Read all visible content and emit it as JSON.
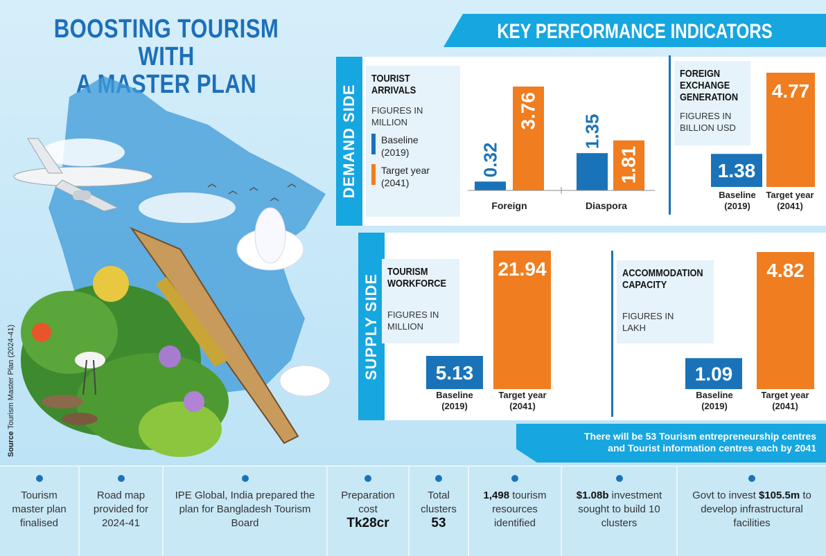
{
  "title_line1": "BOOSTING TOURISM WITH",
  "title_line2": "A MASTER PLAN",
  "kpi_title": "KEY PERFORMANCE INDICATORS",
  "source_label": "Source",
  "source_text": "Tourism Master Plan (2024-41)",
  "demand_label": "DEMAND SIDE",
  "supply_label": "SUPPLY SIDE",
  "colors": {
    "baseline": "#1a73b8",
    "target": "#f07d1f",
    "accent": "#16a6e0",
    "title": "#1d6fb8"
  },
  "legend": {
    "baseline": "Baseline\n(2019)",
    "target": "Target year\n(2041)"
  },
  "category_baseline": "Baseline",
  "category_baseline_year": "(2019)",
  "category_target": "Target year",
  "category_target_year": "(2041)",
  "footnote_line1": "There will be 53 Tourism entrepreneurship centres",
  "footnote_line2": "and Tourist information centres each by 2041",
  "chart_data": [
    {
      "type": "bar",
      "title": "TOURIST\nARRIVALS",
      "subtitle": "FIGURES IN\nMILLION",
      "categories": [
        "Foreign",
        "Diaspora"
      ],
      "series": [
        {
          "name": "Baseline (2019)",
          "values": [
            0.32,
            1.35
          ]
        },
        {
          "name": "Target year (2041)",
          "values": [
            3.76,
            1.81
          ]
        }
      ]
    },
    {
      "type": "bar",
      "title": "FOREIGN\nEXCHANGE\nGENERATION",
      "subtitle": "FIGURES IN\nBILLION USD",
      "categories": [
        "Baseline (2019)",
        "Target year (2041)"
      ],
      "values": [
        1.38,
        4.77
      ]
    },
    {
      "type": "bar",
      "title": "TOURISM\nWORKFORCE",
      "subtitle": "FIGURES IN\nMILLION",
      "categories": [
        "Baseline (2019)",
        "Target year (2041)"
      ],
      "values": [
        5.13,
        21.94
      ]
    },
    {
      "type": "bar",
      "title": "ACCOMMODATION\nCAPACITY",
      "subtitle": "FIGURES IN\nLAKH",
      "categories": [
        "Baseline (2019)",
        "Target year (2041)"
      ],
      "values": [
        1.09,
        4.82
      ]
    }
  ],
  "facts": [
    {
      "pre": "",
      "bold": "",
      "post": "Tourism master plan finalised",
      "big": ""
    },
    {
      "pre": "",
      "bold": "",
      "post": "Road map provided for 2024-41",
      "big": ""
    },
    {
      "pre": "",
      "bold": "",
      "post": "IPE Global, India prepared the plan for Bangladesh Tourism Board",
      "big": ""
    },
    {
      "pre": "",
      "bold": "",
      "post": "Preparation cost",
      "big": "Tk28cr"
    },
    {
      "pre": "",
      "bold": "",
      "post": "Total clusters",
      "big": "53"
    },
    {
      "pre": "",
      "bold": "1,498",
      "post": " tourism resources identified",
      "big": ""
    },
    {
      "pre": "",
      "bold": "$1.08b",
      "post": " investment sought to build 10 clusters",
      "big": ""
    },
    {
      "pre": "Govt to invest ",
      "bold": "$105.5m",
      "post": " to develop infrastructural facilities",
      "big": ""
    }
  ]
}
